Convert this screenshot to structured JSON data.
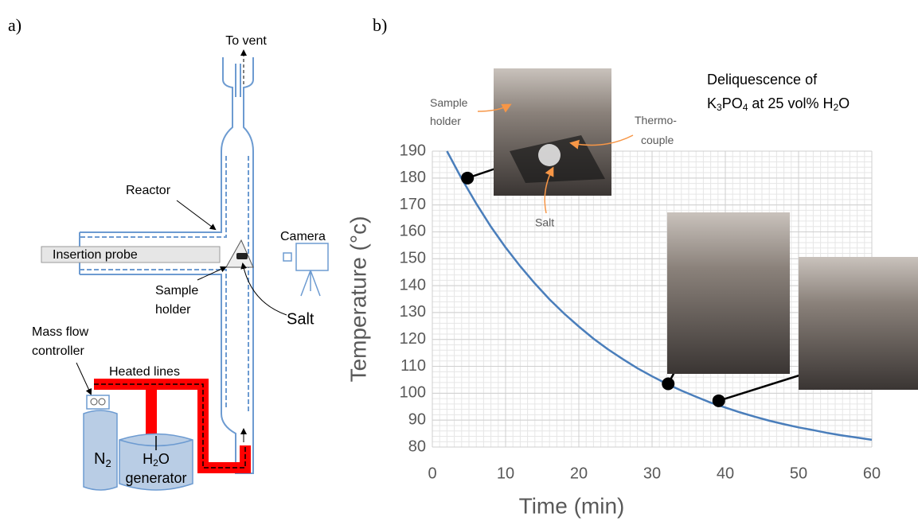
{
  "panel_a": {
    "label": "a)",
    "labels": {
      "to_vent": "To vent",
      "reactor": "Reactor",
      "insertion_probe": "Insertion probe",
      "camera": "Camera",
      "sample_holder": [
        "Sample",
        "holder"
      ],
      "salt": "Salt",
      "mass_flow_controller": [
        "Mass flow",
        "controller"
      ],
      "heated_lines": "Heated lines",
      "n2": [
        "N",
        "2"
      ],
      "h2o_generator": [
        "H",
        "2",
        "O",
        "generator"
      ]
    }
  },
  "panel_b": {
    "label": "b)"
  },
  "chart_data": {
    "type": "line",
    "x_label": "Time (min)",
    "y_label": "Temperature (°c)",
    "annotation": [
      "Deliquescence of",
      "K",
      "3",
      "PO",
      "4",
      " at 25 vol% H",
      "2",
      "O"
    ],
    "photo_labels": {
      "sample_holder": [
        "Sample",
        "holder"
      ],
      "thermocouple": [
        "Thermo-",
        "couple"
      ],
      "salt": "Salt"
    },
    "x": [
      2,
      4,
      6,
      8,
      10,
      12,
      14,
      16,
      18,
      20,
      22,
      24,
      26,
      28,
      30,
      32,
      34,
      36,
      38,
      40,
      42,
      44,
      46,
      48,
      50,
      52,
      54,
      56,
      58,
      60
    ],
    "values": [
      190,
      179.8,
      170.5,
      161.9,
      154.2,
      147.2,
      140.8,
      134.9,
      129.6,
      124.8,
      120.3,
      116.3,
      112.7,
      109.3,
      106.3,
      103.5,
      101.0,
      98.7,
      96.5,
      94.7,
      92.9,
      91.3,
      89.8,
      88.5,
      87.3,
      86.3,
      85.2,
      84.3,
      83.5,
      82.7
    ],
    "color": "#4a7ebb",
    "highlight_points": {
      "x": [
        4.8,
        32.2,
        39.1
      ],
      "values": [
        180,
        103.5,
        97.2
      ],
      "color": "#000000"
    },
    "xlim": [
      0,
      60
    ],
    "ylim": [
      80,
      190
    ],
    "xticks": [
      0,
      10,
      20,
      30,
      40,
      50,
      60
    ],
    "yticks": [
      80,
      90,
      100,
      110,
      120,
      130,
      140,
      150,
      160,
      170,
      180,
      190
    ],
    "grid": true,
    "minor_grid": true
  }
}
